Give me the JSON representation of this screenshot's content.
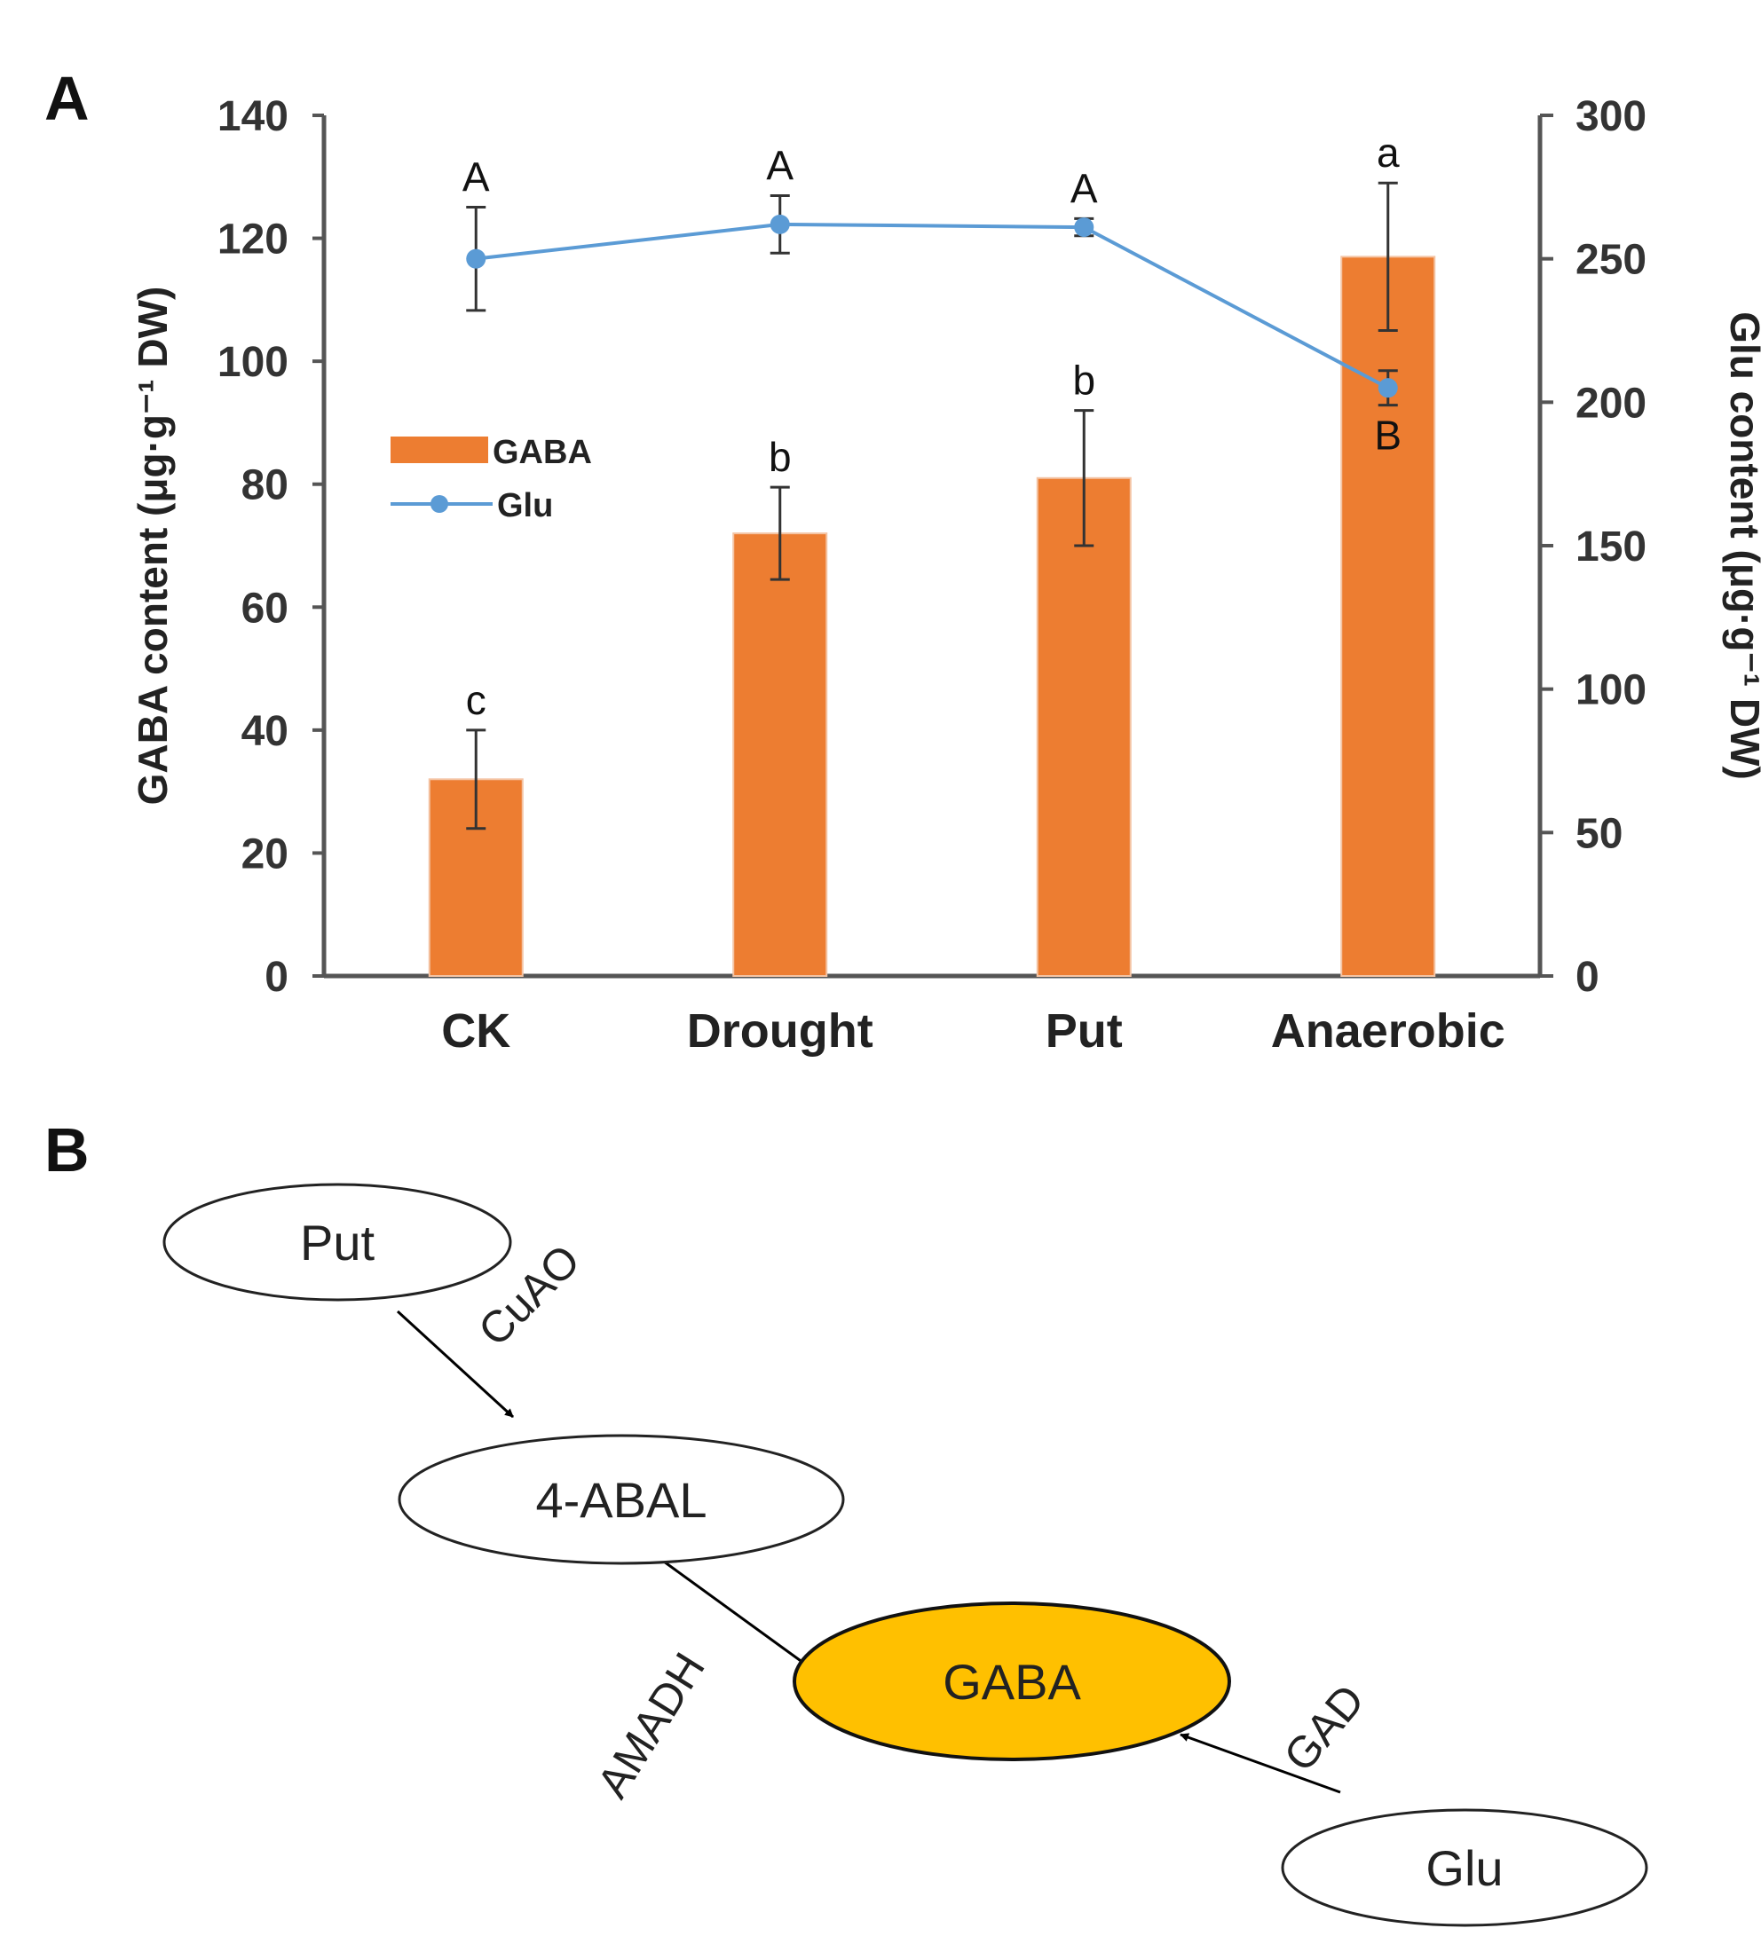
{
  "panels": {
    "a": "A",
    "b": "B"
  },
  "chart_data": {
    "type": "bar+line",
    "categories": [
      "CK",
      "Drought",
      "Put",
      "Anaerobic"
    ],
    "ylabel_left": "GABA content (μg·g⁻¹ DW)",
    "ylabel_right": "Glu content (μg·g⁻¹ DW)",
    "ylim_left": [
      0,
      140
    ],
    "ylim_right": [
      0,
      300
    ],
    "yticks_left": [
      "0",
      "20",
      "40",
      "60",
      "80",
      "100",
      "120",
      "140"
    ],
    "yticks_right": [
      "0",
      "50",
      "100",
      "150",
      "200",
      "250",
      "300"
    ],
    "series": [
      {
        "name": "GABA",
        "kind": "bar",
        "axis": "left",
        "color": "#ED7D31",
        "values": [
          32,
          72,
          81,
          117
        ],
        "errors": [
          8,
          7.5,
          11,
          12
        ],
        "letters": [
          "c",
          "b",
          "b",
          "a"
        ]
      },
      {
        "name": "Glu",
        "kind": "line",
        "axis": "right",
        "color": "#5B9BD5",
        "values": [
          250,
          262,
          261,
          205
        ],
        "errors": [
          18,
          10,
          3,
          6
        ],
        "letters": [
          "A",
          "A",
          "A",
          "B"
        ]
      }
    ],
    "legend": [
      "GABA",
      "Glu"
    ]
  },
  "pathway": {
    "nodes": {
      "put": "Put",
      "abal": "4-ABAL",
      "gaba": "GABA",
      "glu": "Glu"
    },
    "enzymes": {
      "cuao": "CuAO",
      "amadh": "AMADH",
      "gad": "GAD"
    },
    "highlight_color": "#FFC000"
  }
}
